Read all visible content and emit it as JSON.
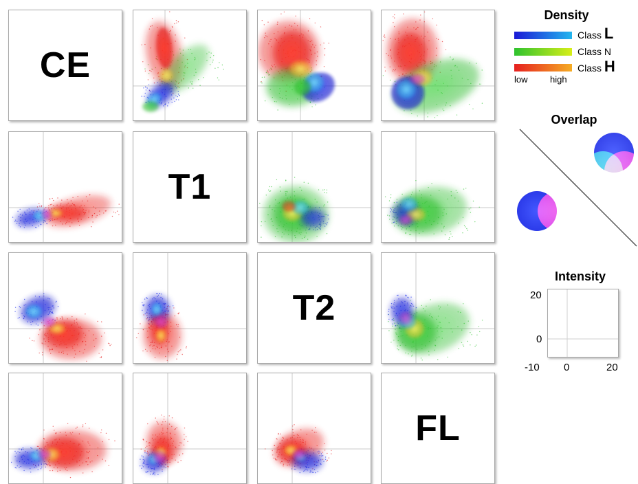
{
  "matrix": {
    "variables": [
      "CE",
      "T1",
      "T2",
      "FL"
    ]
  },
  "legend": {
    "density_title": "Density",
    "classes": [
      {
        "prefix": "Class",
        "letter": "L",
        "colors": [
          "#1a1ad6",
          "#24b6ee"
        ]
      },
      {
        "prefix": "Class",
        "letter": "N",
        "colors": [
          "#2ec22e",
          "#d7ee18"
        ]
      },
      {
        "prefix": "Class",
        "letter": "H",
        "colors": [
          "#e62020",
          "#f5ac24"
        ]
      }
    ],
    "low_label": "low",
    "high_label": "high",
    "overlap_title": "Overlap",
    "intensity_title": "Intensity"
  },
  "chart_data": {
    "type": "scatter",
    "variables": [
      "CE",
      "T1",
      "T2",
      "FL"
    ],
    "series": [
      {
        "name": "Class L",
        "color": "#1a1ad6"
      },
      {
        "name": "Class N",
        "color": "#2ec22e"
      },
      {
        "name": "Class H",
        "color": "#e62020"
      }
    ],
    "intensity_axis": {
      "x_ticks": [
        "0",
        "20"
      ],
      "y_ticks": [
        "20",
        "0",
        "-10"
      ],
      "xlim": [
        -10,
        20
      ],
      "ylim": [
        -10,
        20
      ]
    },
    "grid": true,
    "legend_position": "right"
  }
}
